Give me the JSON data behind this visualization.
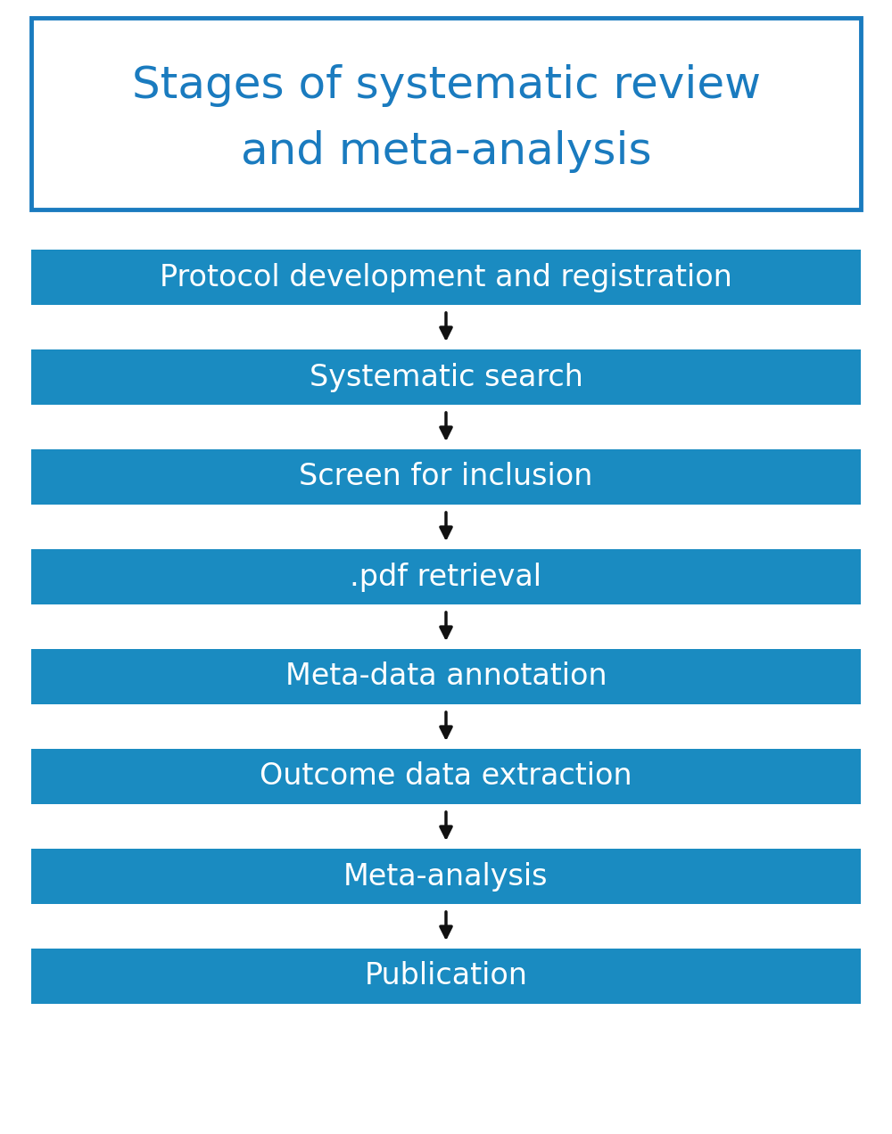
{
  "title_line1": "Stages of systematic review",
  "title_line2": "and meta-analysis",
  "title_color": "#1a7bbf",
  "title_border_color": "#1a7bbf",
  "title_bg": "#ffffff",
  "box_color": "#1a8bc1",
  "box_text_color": "#ffffff",
  "steps": [
    "Protocol development and registration",
    "Systematic search",
    "Screen for inclusion",
    ".pdf retrieval",
    "Meta-data annotation",
    "Outcome data extraction",
    "Meta-analysis",
    "Publication"
  ],
  "arrow_color": "#111111",
  "background_color": "#ffffff",
  "fig_width": 10.0,
  "fig_height": 12.72,
  "dpi": 100,
  "title_fontsize": 36,
  "step_fontsize": 24
}
